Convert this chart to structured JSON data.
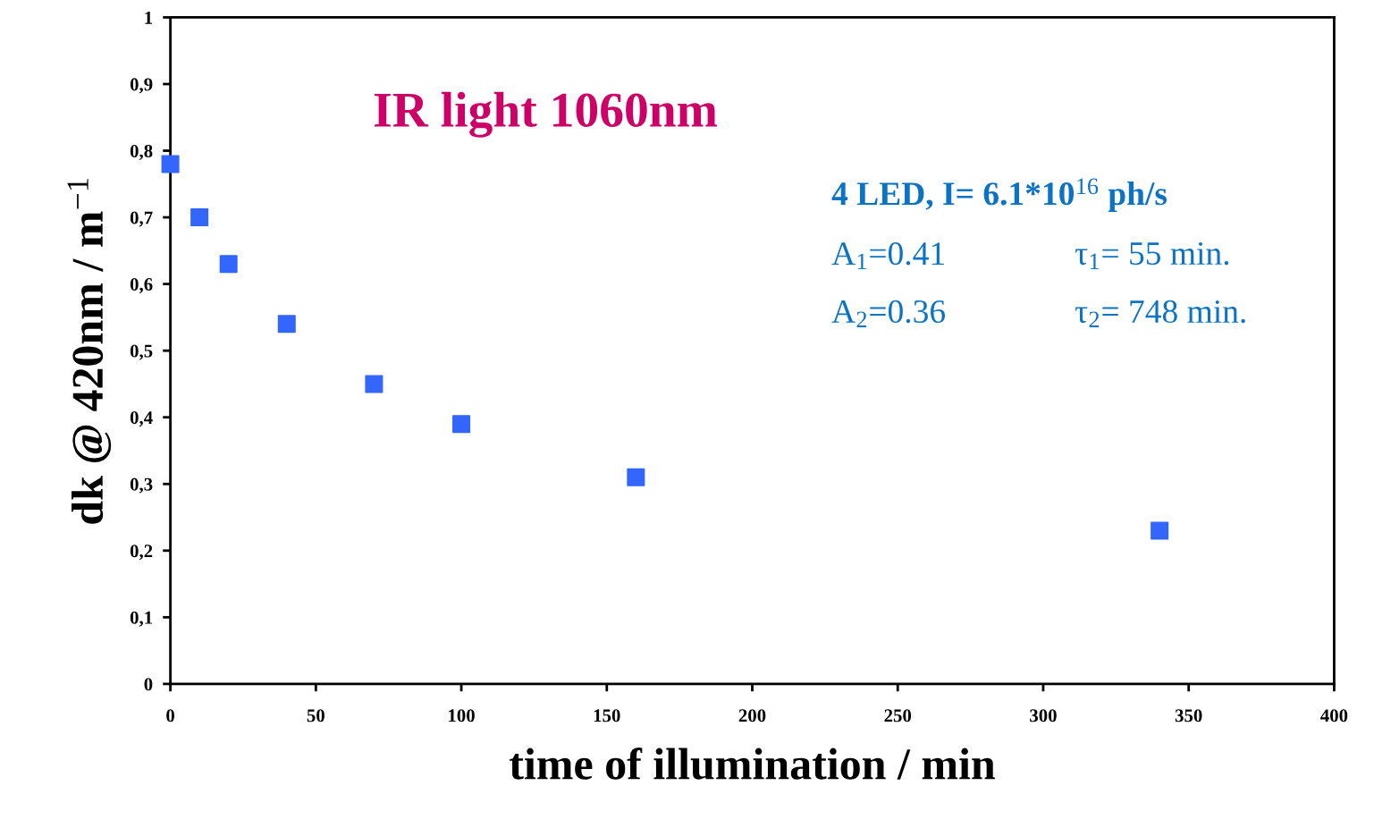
{
  "chart_data": {
    "type": "scatter",
    "xlabel": "time of illumination / min",
    "ylabel": "dk @ 420nm / m$^{−1}$",
    "x": [
      0,
      10,
      20,
      40,
      70,
      100,
      160,
      340
    ],
    "series": [
      {
        "color": "#3366ff",
        "values": [
          0.78,
          0.7,
          0.63,
          0.54,
          0.45,
          0.39,
          0.31,
          0.23
        ]
      }
    ],
    "marker": "square",
    "grid": false,
    "xlim": [
      0,
      400
    ],
    "xticks": [
      0,
      50,
      100,
      150,
      200,
      250,
      300,
      350,
      400
    ],
    "ylim": [
      0,
      1
    ],
    "yticks": [
      0,
      {
        "value": 0.1,
        "label": "0,1"
      },
      {
        "value": 0.2,
        "label": "0,2"
      },
      {
        "value": 0.3,
        "label": "0,3"
      },
      {
        "value": 0.4,
        "label": "0,4"
      },
      {
        "value": 0.5,
        "label": "0,5"
      },
      {
        "value": 0.6,
        "label": "0,6"
      },
      {
        "value": 0.7,
        "label": "0,7"
      },
      {
        "value": 0.8,
        "label": "0,8"
      },
      {
        "value": 0.9,
        "label": "0,9"
      },
      1
    ],
    "annotations": [
      "IR light 1060nm",
      "4 LED, I= 6.1*10$^{16}$ ph/s",
      "A$_{1}$=0.41",
      "τ$_{1}$= 55 min.",
      "A$_{2}$=0.36",
      "τ$_{2}$= 748 min."
    ]
  }
}
